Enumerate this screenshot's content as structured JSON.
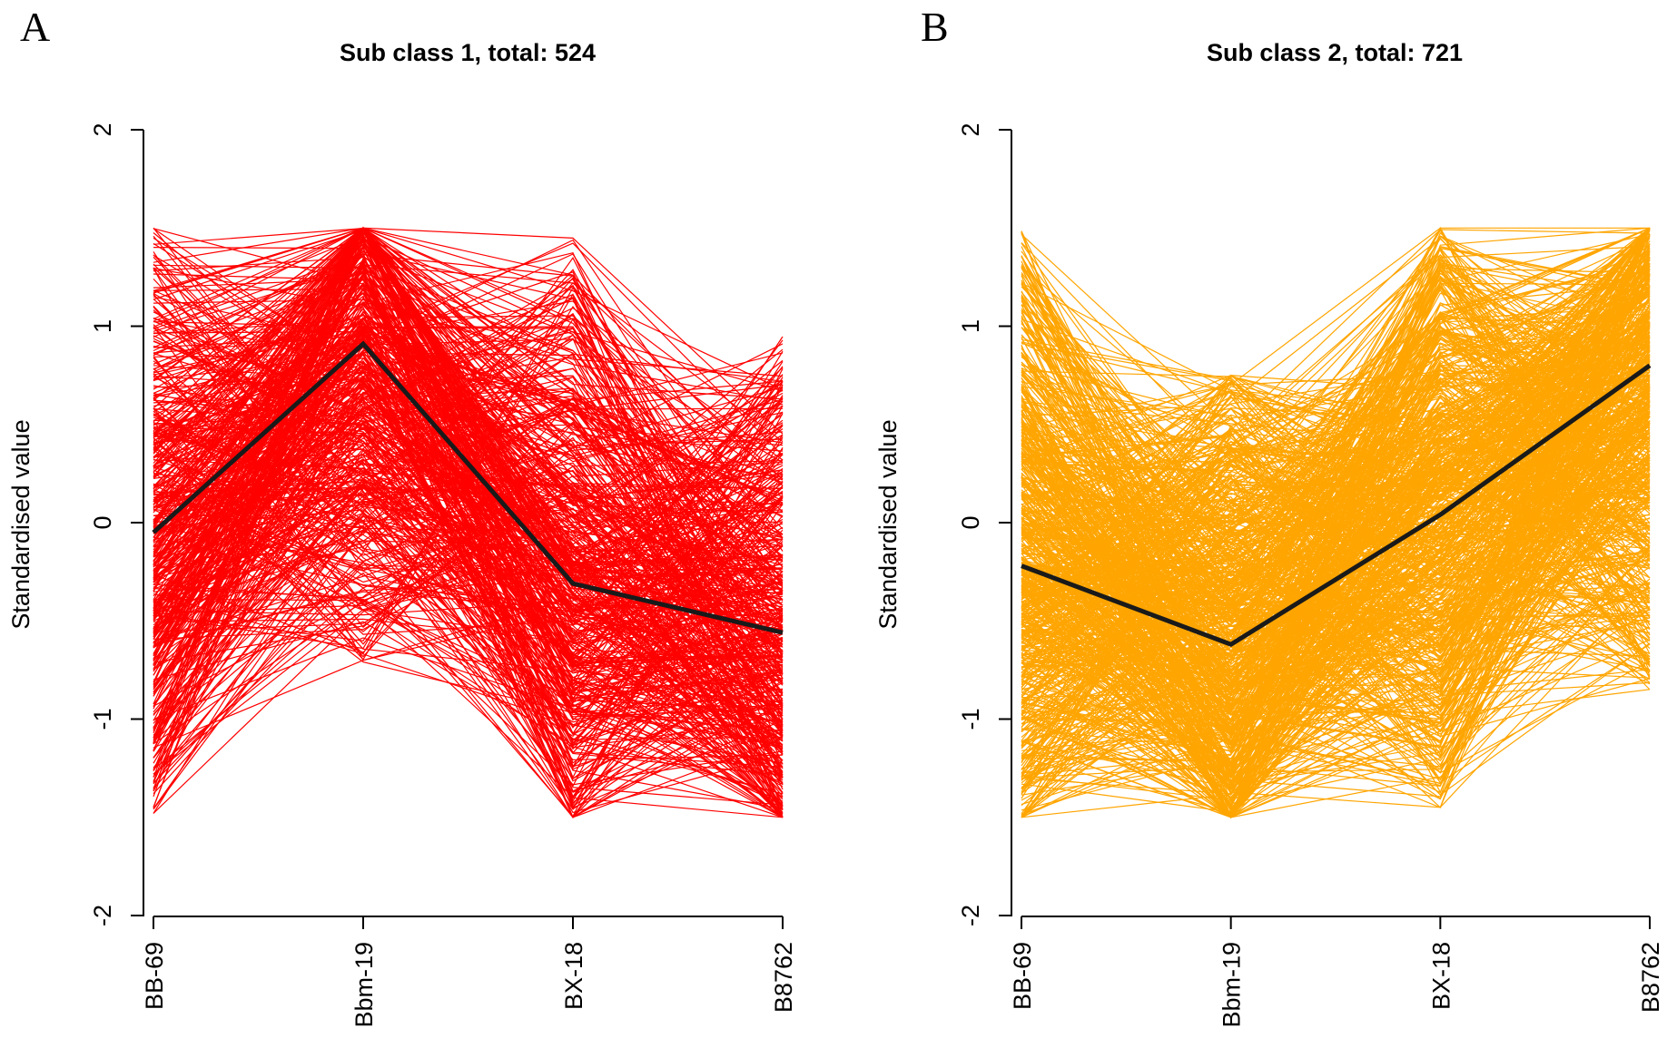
{
  "chart_data": [
    {
      "type": "line",
      "panel_label": "A",
      "title": "Sub class 1, total: 524",
      "xlabel": "",
      "ylabel": "Standardised value",
      "categories": [
        "BB-69",
        "Bbm-19",
        "BX-18",
        "B8762"
      ],
      "ylim": [
        -2,
        2
      ],
      "yticks": [
        "-2",
        "-1",
        "0",
        "1",
        "2"
      ],
      "line_color": "#ff0000",
      "n_profiles": 524,
      "profile_envelope": {
        "upper": [
          1.5,
          1.5,
          1.45,
          0.95
        ],
        "lower": [
          -1.48,
          -0.72,
          -1.5,
          -1.5
        ]
      },
      "series": [
        {
          "name": "centroid",
          "color": "#1a1a1a",
          "values": [
            -0.05,
            0.91,
            -0.31,
            -0.56
          ]
        }
      ]
    },
    {
      "type": "line",
      "panel_label": "B",
      "title": "Sub class 2, total: 721",
      "xlabel": "",
      "ylabel": "Standardised value",
      "categories": [
        "BB-69",
        "Bbm-19",
        "BX-18",
        "B8762"
      ],
      "ylim": [
        -2,
        2
      ],
      "yticks": [
        "-2",
        "-1",
        "0",
        "1",
        "2"
      ],
      "line_color": "#ffa500",
      "n_profiles": 721,
      "profile_envelope": {
        "upper": [
          1.5,
          0.75,
          1.5,
          1.5
        ],
        "lower": [
          -1.5,
          -1.5,
          -1.45,
          -0.85
        ]
      },
      "series": [
        {
          "name": "centroid",
          "color": "#1a1a1a",
          "values": [
            -0.22,
            -0.62,
            0.04,
            0.8
          ]
        }
      ]
    }
  ]
}
